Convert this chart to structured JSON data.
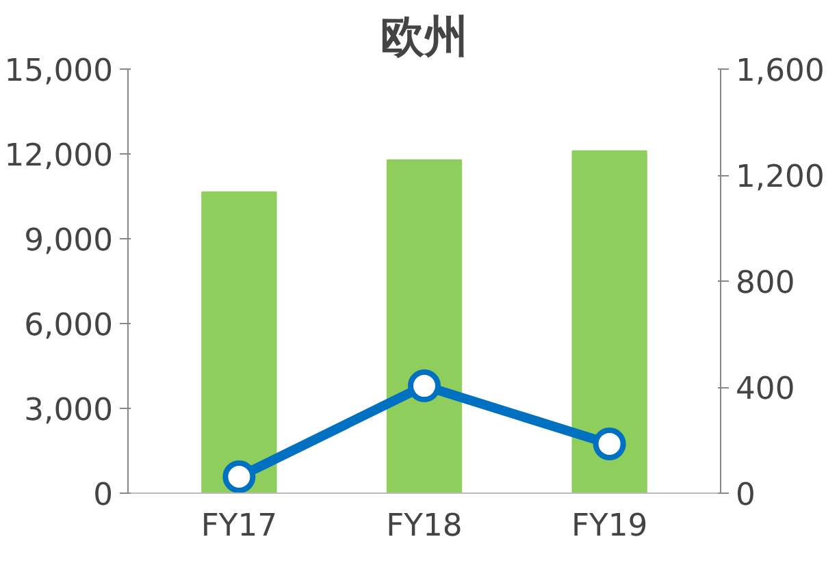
{
  "chart_data": {
    "type": "bar",
    "title": "欧州",
    "categories": [
      "FY17",
      "FY18",
      "FY19"
    ],
    "series": [
      {
        "color": "#8fce5c",
        "values": [
          10650,
          11780,
          12100
        ]
      },
      {
        "type": "line",
        "color": "#0070c0",
        "axis": "y2",
        "marker": "circle",
        "values": [
          62,
          405,
          186
        ]
      }
    ],
    "ylim": [
      0,
      15000
    ],
    "yticks": [
      {
        "value": 0,
        "label": "0"
      },
      {
        "value": 3000,
        "label": "3,000"
      },
      {
        "value": 6000,
        "label": "6,000"
      },
      {
        "value": 9000,
        "label": "9,000"
      },
      {
        "value": 12000,
        "label": "12,000"
      },
      {
        "value": 15000,
        "label": "15,000"
      }
    ],
    "y2lim": [
      0,
      1600
    ],
    "y2ticks": [
      {
        "value": 0,
        "label": "0"
      },
      {
        "value": 400,
        "label": "400"
      },
      {
        "value": 800,
        "label": "800"
      },
      {
        "value": 1200,
        "label": "1,200"
      },
      {
        "value": 1600,
        "label": "1,600"
      }
    ],
    "grid": false
  }
}
